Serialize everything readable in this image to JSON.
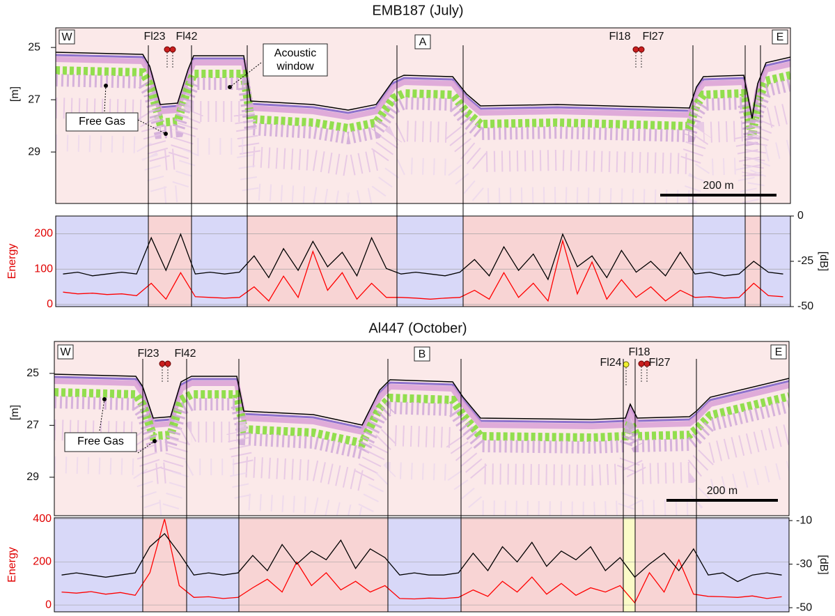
{
  "chart_data": [
    {
      "type": "line",
      "title": "EMB187 (July)",
      "echogram": {
        "label": "A",
        "west": "W",
        "east": "E",
        "ylabel": "[m]",
        "ylim": [
          24.25,
          30.97
        ],
        "yticks": [
          25,
          27,
          29
        ],
        "flares": [
          "Fl23",
          "Fl42",
          "Fl18",
          "Fl27"
        ],
        "annotations": [
          "Acoustic window",
          "Free Gas"
        ],
        "scale_bar": "200 m"
      },
      "ylabel": "Energy",
      "y2label": "[dB]",
      "ylim": [
        -6,
        250
      ],
      "yticks": [
        0,
        100,
        200
      ],
      "y2lim": [
        -50,
        0
      ],
      "y2ticks": [
        0,
        -25,
        -50
      ],
      "grid": true,
      "series": [
        {
          "color": "#ff0000",
          "values": [
            35,
            30,
            32,
            28,
            30,
            25,
            60,
            15,
            90,
            22,
            20,
            18,
            20,
            50,
            10,
            80,
            20,
            150,
            40,
            90,
            15,
            60,
            20,
            20,
            18,
            15,
            18,
            20,
            40,
            15,
            90,
            20,
            60,
            10,
            180,
            30,
            120,
            15,
            70,
            20,
            50,
            10,
            40,
            20,
            22,
            18,
            20,
            60,
            25,
            22
          ]
        },
        {
          "color": "#000000",
          "axis": "y2",
          "values": [
            -32,
            -31,
            -33,
            -32,
            -31,
            -32,
            -12,
            -30,
            -10,
            -32,
            -31,
            -32,
            -31,
            -22,
            -34,
            -18,
            -30,
            -14,
            -28,
            -20,
            -33,
            -12,
            -29,
            -32,
            -31,
            -32,
            -33,
            -31,
            -24,
            -33,
            -17,
            -30,
            -21,
            -35,
            -10,
            -28,
            -22,
            -34,
            -19,
            -31,
            -25,
            -33,
            -20,
            -32,
            -31,
            -33,
            -32,
            -25,
            -31,
            -32
          ]
        }
      ]
    },
    {
      "type": "line",
      "title": "Al447 (October)",
      "echogram": {
        "label": "B",
        "west": "W",
        "east": "E",
        "ylabel": "[m]",
        "ylim": [
          23.77,
          30.48
        ],
        "yticks": [
          25,
          27,
          29
        ],
        "flares": [
          "Fl23",
          "Fl42",
          "Fl18",
          "Fl24",
          "Fl27"
        ],
        "annotations": [
          "Free Gas"
        ],
        "scale_bar": "200 m"
      },
      "ylabel": "Energy",
      "y2label": "[dB]",
      "ylim": [
        -32,
        406
      ],
      "yticks": [
        0,
        200,
        400
      ],
      "y2lim": [
        -51.9,
        -8.7
      ],
      "y2ticks": [
        -10,
        -30,
        -50
      ],
      "grid": true,
      "series": [
        {
          "color": "#ff0000",
          "values": [
            60,
            55,
            62,
            50,
            58,
            45,
            150,
            400,
            90,
            35,
            38,
            30,
            35,
            80,
            120,
            60,
            200,
            90,
            150,
            70,
            110,
            60,
            90,
            30,
            28,
            32,
            30,
            35,
            70,
            40,
            110,
            60,
            130,
            50,
            100,
            45,
            80,
            60,
            90,
            10,
            150,
            60,
            210,
            50,
            40,
            38,
            35,
            42,
            30,
            38
          ]
        },
        {
          "color": "#000000",
          "axis": "y2",
          "values": [
            -35,
            -34,
            -35,
            -36,
            -35,
            -34,
            -22,
            -16,
            -25,
            -35,
            -34,
            -35,
            -34,
            -26,
            -33,
            -21,
            -30,
            -24,
            -28,
            -19,
            -32,
            -23,
            -27,
            -35,
            -34,
            -35,
            -35,
            -34,
            -25,
            -33,
            -22,
            -29,
            -20,
            -31,
            -24,
            -28,
            -22,
            -33,
            -27,
            -36,
            -30,
            -25,
            -33,
            -23,
            -35,
            -34,
            -38,
            -35,
            -34,
            -35
          ]
        }
      ]
    }
  ]
}
